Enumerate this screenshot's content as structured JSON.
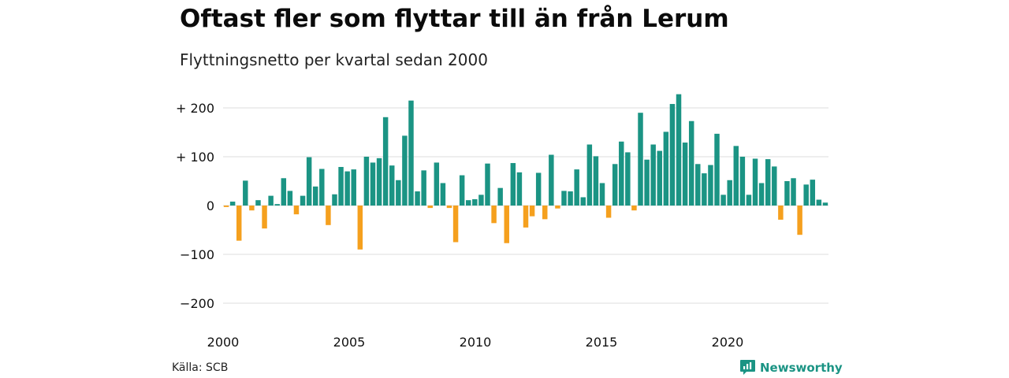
{
  "title": "Oftast fler som flyttar till än från Lerum",
  "subtitle": "Flyttningsnetto per kvartal sedan 2000",
  "source": "Källa: SCB",
  "brand": "Newsworthy",
  "colors": {
    "positive": "#1b9484",
    "negative": "#f5a01e",
    "grid": "#dddddd",
    "brand": "#1b9484"
  },
  "chart_data": {
    "type": "bar",
    "title": "Oftast fler som flyttar till än från Lerum",
    "subtitle": "Flyttningsnetto per kvartal sedan 2000",
    "xlabel": "",
    "ylabel": "",
    "ylim": [
      -230,
      235
    ],
    "y_ticks": [
      {
        "value": 200,
        "label": "+ 200"
      },
      {
        "value": 100,
        "label": "+ 100"
      },
      {
        "value": 0,
        "label": "0"
      },
      {
        "value": -100,
        "label": "−100"
      },
      {
        "value": -200,
        "label": "−200"
      }
    ],
    "x_ticks": [
      {
        "value": 2000,
        "label": "2000"
      },
      {
        "value": 2005,
        "label": "2005"
      },
      {
        "value": 2010,
        "label": "2010"
      },
      {
        "value": 2015,
        "label": "2015"
      },
      {
        "value": 2020,
        "label": "2020"
      }
    ],
    "x_range": [
      2000,
      2024
    ],
    "grid": true,
    "legend": "none",
    "start_year": 2000,
    "values": [
      -3,
      8,
      -72,
      51,
      -10,
      11,
      -47,
      20,
      3,
      56,
      30,
      -18,
      20,
      99,
      39,
      75,
      -40,
      23,
      79,
      70,
      74,
      -90,
      100,
      88,
      97,
      181,
      82,
      52,
      143,
      215,
      29,
      72,
      -5,
      88,
      46,
      -5,
      -75,
      62,
      11,
      13,
      22,
      86,
      -36,
      36,
      -77,
      87,
      68,
      -45,
      -22,
      67,
      -28,
      104,
      -6,
      30,
      29,
      74,
      17,
      125,
      101,
      46,
      -25,
      85,
      131,
      109,
      -10,
      190,
      94,
      125,
      112,
      151,
      208,
      228,
      129,
      173,
      85,
      66,
      83,
      147,
      22,
      52,
      122,
      100,
      22,
      96,
      46,
      95,
      80,
      -29,
      50,
      56,
      -60,
      43,
      53,
      12,
      6
    ]
  }
}
